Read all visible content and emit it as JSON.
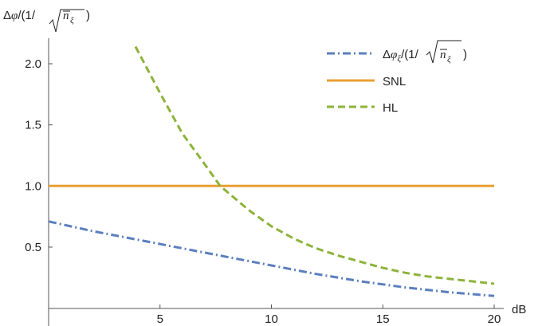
{
  "chart_data": {
    "type": "line",
    "xlabel": "dB",
    "ylabel": "Δφ/(1/√n̄ξ)",
    "xlim": [
      0,
      20
    ],
    "ylim": [
      0.1,
      2.2
    ],
    "x_ticks": [
      5,
      10,
      15,
      20
    ],
    "x_tick_labels": [
      "5",
      "10",
      "15",
      "20"
    ],
    "y_ticks": [
      0.5,
      1.0,
      1.5,
      2.0
    ],
    "y_tick_labels": [
      "0.5",
      "1.0",
      "1.5",
      "2.0"
    ],
    "grid": false,
    "legend_position": "top-right",
    "series": [
      {
        "name": "Δφξ/(1/√n̄ξ)",
        "style": "dash-dot",
        "color": "#5b7fbf",
        "x": [
          0,
          2,
          4,
          6,
          8,
          10,
          12,
          14,
          16,
          18,
          20
        ],
        "y": [
          0.71,
          0.63,
          0.56,
          0.49,
          0.42,
          0.35,
          0.28,
          0.22,
          0.17,
          0.13,
          0.1
        ]
      },
      {
        "name": "SNL",
        "style": "solid",
        "color": "#e8a030",
        "x": [
          0,
          20
        ],
        "y": [
          1.0,
          1.0
        ]
      },
      {
        "name": "HL",
        "style": "dashed",
        "color": "#8db33a",
        "x": [
          3.9,
          5,
          6,
          7,
          7.7,
          9,
          10,
          11,
          12,
          13,
          14,
          15,
          16,
          17,
          18,
          19,
          20
        ],
        "y": [
          2.14,
          1.76,
          1.43,
          1.18,
          1.0,
          0.8,
          0.67,
          0.57,
          0.49,
          0.43,
          0.38,
          0.33,
          0.29,
          0.26,
          0.24,
          0.22,
          0.2
        ]
      }
    ]
  }
}
